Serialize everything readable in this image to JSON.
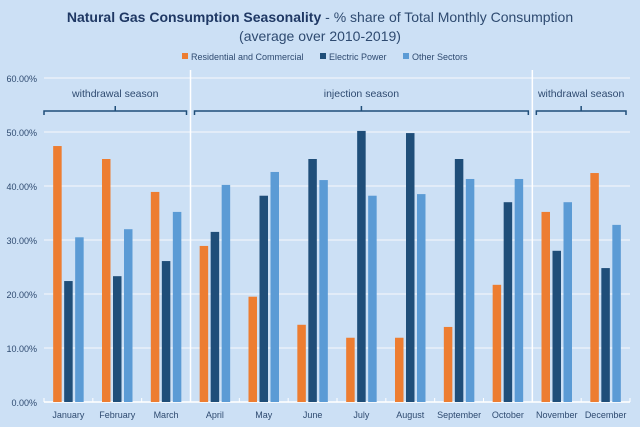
{
  "chart_data": {
    "type": "bar",
    "title_bold": "Natural Gas Consumption Seasonality",
    "title_rest": " - % share of Total Monthly Consumption",
    "subtitle": "(average over 2010-2019)",
    "xlabel": "",
    "ylabel": "",
    "ylim": [
      0,
      60
    ],
    "yticks": [
      "0.00%",
      "10.00%",
      "20.00%",
      "30.00%",
      "40.00%",
      "50.00%",
      "60.00%"
    ],
    "ytick_values": [
      0,
      10,
      20,
      30,
      40,
      50,
      60
    ],
    "grid": true,
    "legend_position": "top",
    "categories": [
      "January",
      "February",
      "March",
      "April",
      "May",
      "June",
      "July",
      "August",
      "September",
      "October",
      "November",
      "December"
    ],
    "series": [
      {
        "name": "Residential and Commercial",
        "color": "#ed7d31",
        "values": [
          47.4,
          45.0,
          38.9,
          28.9,
          19.5,
          14.3,
          11.9,
          11.9,
          13.9,
          21.7,
          35.2,
          42.4
        ]
      },
      {
        "name": "Electric Power",
        "color": "#1f4e79",
        "values": [
          22.4,
          23.3,
          26.1,
          31.5,
          38.2,
          45.0,
          50.2,
          49.8,
          45.0,
          37.0,
          28.0,
          24.8
        ]
      },
      {
        "name": "Other Sectors",
        "color": "#5b9bd5",
        "values": [
          30.5,
          32.0,
          35.2,
          40.2,
          42.6,
          41.1,
          38.2,
          38.5,
          41.3,
          41.3,
          37.0,
          32.8
        ]
      }
    ],
    "annotations": [
      {
        "label": "withdrawal season",
        "from": "January",
        "to": "March"
      },
      {
        "label": "injection season",
        "from": "April",
        "to": "October"
      },
      {
        "label": "withdrawal season",
        "from": "November",
        "to": "December"
      }
    ],
    "separators_after": [
      "March",
      "October"
    ]
  }
}
